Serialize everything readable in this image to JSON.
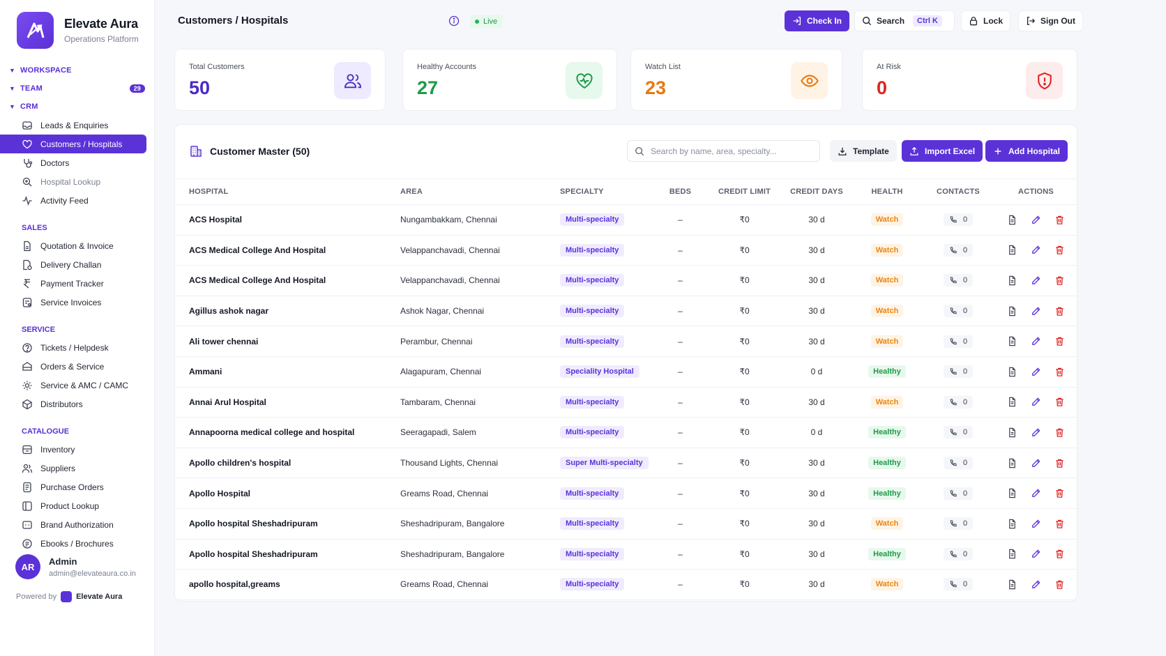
{
  "brand": {
    "name": "Elevate Aura",
    "subtitle": "Operations Platform"
  },
  "sidebar": {
    "workspace_label": "WORKSPACE",
    "team_label": "TEAM",
    "team_count": "29",
    "crm_label": "CRM",
    "crm_items": [
      {
        "label": "Leads & Enquiries",
        "icon": "inbox-icon"
      },
      {
        "label": "Customers / Hospitals",
        "icon": "heart-icon"
      },
      {
        "label": "Doctors",
        "icon": "stethoscope-icon"
      },
      {
        "label": "Hospital Lookup",
        "icon": "search-hospital-icon"
      },
      {
        "label": "Activity Feed",
        "icon": "activity-icon"
      }
    ],
    "sales_label": "SALES",
    "sales_items": [
      {
        "label": "Quotation & Invoice",
        "icon": "document-icon"
      },
      {
        "label": "Delivery Challan",
        "icon": "delivery-icon"
      },
      {
        "label": "Payment Tracker",
        "icon": "payment-icon"
      },
      {
        "label": "Service Invoices",
        "icon": "invoice-icon"
      }
    ],
    "service_label": "SERVICE",
    "service_items": [
      {
        "label": "Tickets / Helpdesk",
        "icon": "ticket-icon"
      },
      {
        "label": "Orders & Service",
        "icon": "orders-icon"
      },
      {
        "label": "Service & AMC / CAMC",
        "icon": "service-icon"
      },
      {
        "label": "Distributors",
        "icon": "distributor-icon"
      }
    ],
    "catalogue_label": "CATALOGUE",
    "catalogue_items": [
      {
        "label": "Inventory",
        "icon": "inventory-icon"
      },
      {
        "label": "Suppliers",
        "icon": "suppliers-icon"
      },
      {
        "label": "Purchase Orders",
        "icon": "purchase-icon"
      },
      {
        "label": "Product Lookup",
        "icon": "product-icon"
      },
      {
        "label": "Brand Authorization",
        "icon": "brand-icon"
      },
      {
        "label": "Ebooks / Brochures",
        "icon": "ebook-icon"
      }
    ]
  },
  "user": {
    "initials": "AR",
    "name": "Admin",
    "email": "admin@elevateaura.co.in"
  },
  "powered": {
    "prefix": "Powered by",
    "brand": "Elevate Aura"
  },
  "header": {
    "title": "Customers / Hospitals",
    "live_label": "Live",
    "check_in": "Check In",
    "search": "Search",
    "search_shortcut": "Ctrl K",
    "lock": "Lock",
    "sign_out": "Sign Out"
  },
  "stats": [
    {
      "label": "Total Customers",
      "value": "50",
      "color": "#4b2bc4",
      "icon": "users-icon"
    },
    {
      "label": "Healthy Accounts",
      "value": "27",
      "color": "#1f9a4a",
      "icon": "heart-pulse-icon"
    },
    {
      "label": "Watch List",
      "value": "23",
      "color": "#e8780f",
      "icon": "eye-icon"
    },
    {
      "label": "At Risk",
      "value": "0",
      "color": "#e02424",
      "icon": "shield-alert-icon"
    }
  ],
  "table_card": {
    "title": "Customer Master (50)",
    "search_placeholder": "Search by name, area, specialty...",
    "template_btn": "Template",
    "import_btn": "Import Excel",
    "add_btn": "Add Hospital",
    "columns": [
      "HOSPITAL",
      "AREA",
      "SPECIALTY",
      "BEDS",
      "CREDIT LIMIT",
      "CREDIT DAYS",
      "HEALTH",
      "CONTACTS",
      "ACTIONS"
    ],
    "rows": [
      {
        "hospital": "ACS Hospital",
        "area": "Nungambakkam, Chennai",
        "specialty": "Multi-specialty",
        "beds": "–",
        "credit_limit": "₹0",
        "credit_days": "30 d",
        "health": "Watch",
        "contacts": "0"
      },
      {
        "hospital": "ACS Medical College And Hospital",
        "area": "Velappanchavadi, Chennai",
        "specialty": "Multi-specialty",
        "beds": "–",
        "credit_limit": "₹0",
        "credit_days": "30 d",
        "health": "Watch",
        "contacts": "0"
      },
      {
        "hospital": "ACS Medical College And Hospital",
        "area": "Velappanchavadi, Chennai",
        "specialty": "Multi-specialty",
        "beds": "–",
        "credit_limit": "₹0",
        "credit_days": "30 d",
        "health": "Watch",
        "contacts": "0"
      },
      {
        "hospital": "Agillus ashok nagar",
        "area": "Ashok Nagar, Chennai",
        "specialty": "Multi-specialty",
        "beds": "–",
        "credit_limit": "₹0",
        "credit_days": "30 d",
        "health": "Watch",
        "contacts": "0"
      },
      {
        "hospital": "Ali tower chennai",
        "area": "Perambur, Chennai",
        "specialty": "Multi-specialty",
        "beds": "–",
        "credit_limit": "₹0",
        "credit_days": "30 d",
        "health": "Watch",
        "contacts": "0"
      },
      {
        "hospital": "Ammani",
        "area": "Alagapuram, Chennai",
        "specialty": "Speciality Hospital",
        "beds": "–",
        "credit_limit": "₹0",
        "credit_days": "0 d",
        "health": "Healthy",
        "contacts": "0"
      },
      {
        "hospital": "Annai Arul Hospital",
        "area": "Tambaram, Chennai",
        "specialty": "Multi-specialty",
        "beds": "–",
        "credit_limit": "₹0",
        "credit_days": "30 d",
        "health": "Watch",
        "contacts": "0"
      },
      {
        "hospital": "Annapoorna medical college and hospital",
        "area": "Seeragapadi, Salem",
        "specialty": "Multi-specialty",
        "beds": "–",
        "credit_limit": "₹0",
        "credit_days": "0 d",
        "health": "Healthy",
        "contacts": "0"
      },
      {
        "hospital": "Apollo children's hospital",
        "area": "Thousand Lights, Chennai",
        "specialty": "Super Multi-specialty",
        "beds": "–",
        "credit_limit": "₹0",
        "credit_days": "30 d",
        "health": "Healthy",
        "contacts": "0"
      },
      {
        "hospital": "Apollo Hospital",
        "area": "Greams Road, Chennai",
        "specialty": "Multi-specialty",
        "beds": "–",
        "credit_limit": "₹0",
        "credit_days": "30 d",
        "health": "Healthy",
        "contacts": "0"
      },
      {
        "hospital": "Apollo hospital Sheshadripuram",
        "area": "Sheshadripuram, Bangalore",
        "specialty": "Multi-specialty",
        "beds": "–",
        "credit_limit": "₹0",
        "credit_days": "30 d",
        "health": "Watch",
        "contacts": "0"
      },
      {
        "hospital": "Apollo hospital Sheshadripuram",
        "area": "Sheshadripuram, Bangalore",
        "specialty": "Multi-specialty",
        "beds": "–",
        "credit_limit": "₹0",
        "credit_days": "30 d",
        "health": "Healthy",
        "contacts": "0"
      },
      {
        "hospital": "apollo hospital,greams",
        "area": "Greams Road, Chennai",
        "specialty": "Multi-specialty",
        "beds": "–",
        "credit_limit": "₹0",
        "credit_days": "30 d",
        "health": "Watch",
        "contacts": "0"
      }
    ]
  },
  "colors": {
    "accent": "#5b32d8",
    "watch": "#e8870f",
    "healthy": "#1f9a4a",
    "danger": "#e02424"
  }
}
